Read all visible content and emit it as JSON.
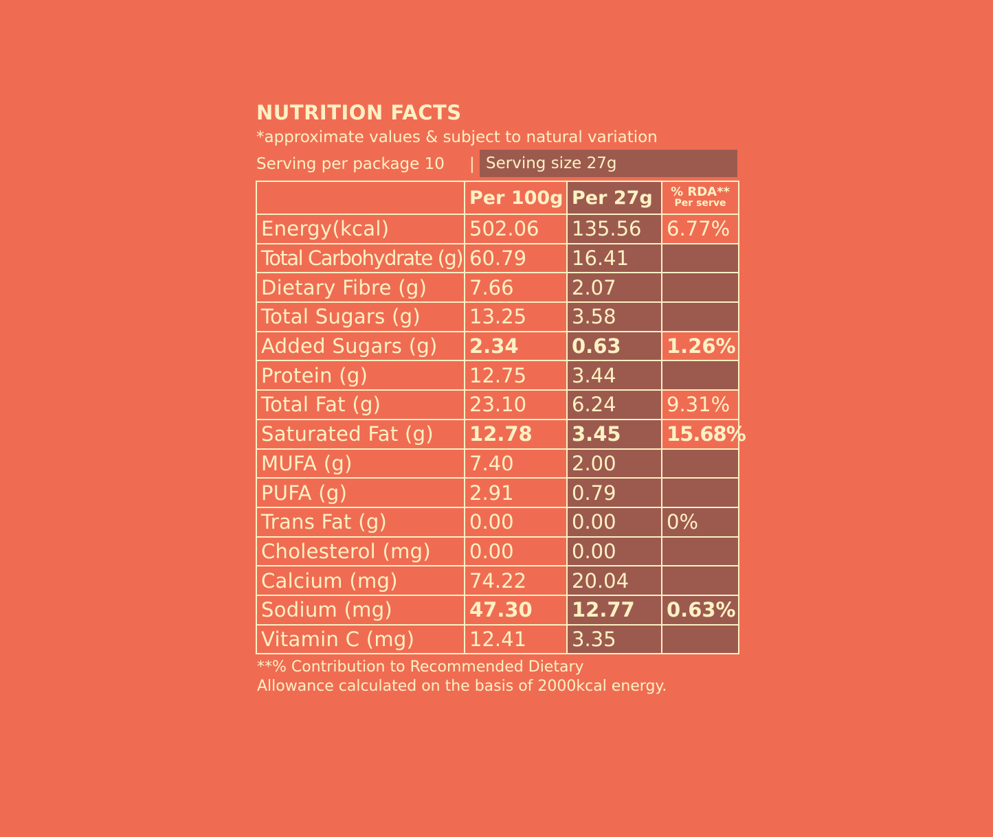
{
  "title": "NUTRITION FACTS",
  "subtitle": "*approximate values & subject to natural variation",
  "serving": {
    "per_package": "Serving per package 10",
    "separator": "|",
    "size": "Serving size 27g"
  },
  "table": {
    "headers": {
      "nutrient": "",
      "per_100g": "Per 100g",
      "per_27g": "Per 27g",
      "rda": "% RDA**",
      "rda_sub": "Per serve"
    },
    "rows": [
      {
        "name": "Energy(kcal)",
        "per_100g": "502.06",
        "per_27g": "135.56",
        "rda": "6.77%"
      },
      {
        "name": "Total Carbohydrate (g)",
        "per_100g": "60.79",
        "per_27g": "16.41",
        "rda": ""
      },
      {
        "name": "Dietary Fibre (g)",
        "per_100g": "7.66",
        "per_27g": "2.07",
        "rda": ""
      },
      {
        "name": "Total Sugars (g)",
        "per_100g": "13.25",
        "per_27g": "3.58",
        "rda": ""
      },
      {
        "name": "Added Sugars (g)",
        "per_100g": "2.34",
        "per_27g": "0.63",
        "rda": "1.26%"
      },
      {
        "name": "Protein (g)",
        "per_100g": "12.75",
        "per_27g": "3.44",
        "rda": ""
      },
      {
        "name": "Total Fat (g)",
        "per_100g": "23.10",
        "per_27g": "6.24",
        "rda": "9.31%"
      },
      {
        "name": "Saturated Fat (g)",
        "per_100g": "12.78",
        "per_27g": "3.45",
        "rda": "15.68%"
      },
      {
        "name": "MUFA (g)",
        "per_100g": "7.40",
        "per_27g": "2.00",
        "rda": ""
      },
      {
        "name": "PUFA (g)",
        "per_100g": "2.91",
        "per_27g": "0.79",
        "rda": ""
      },
      {
        "name": "Trans Fat (g)",
        "per_100g": "0.00",
        "per_27g": "0.00",
        "rda": "0%"
      },
      {
        "name": "Cholesterol (mg)",
        "per_100g": "0.00",
        "per_27g": "0.00",
        "rda": ""
      },
      {
        "name": "Calcium (mg)",
        "per_100g": "74.22",
        "per_27g": "20.04",
        "rda": ""
      },
      {
        "name": "Sodium (mg)",
        "per_100g": "47.30",
        "per_27g": "12.77",
        "rda": "0.63%"
      },
      {
        "name": "Vitamin C (mg)",
        "per_100g": "12.41",
        "per_27g": "3.35",
        "rda": ""
      }
    ]
  },
  "footnote": {
    "line1": "**% Contribution to Recommended Dietary",
    "line2": "Allowance calculated on the basis of 2000kcal energy."
  },
  "colors": {
    "background": "#EF6C53",
    "text": "#FDF1C4",
    "dark_cell": "#9C5A4E"
  }
}
